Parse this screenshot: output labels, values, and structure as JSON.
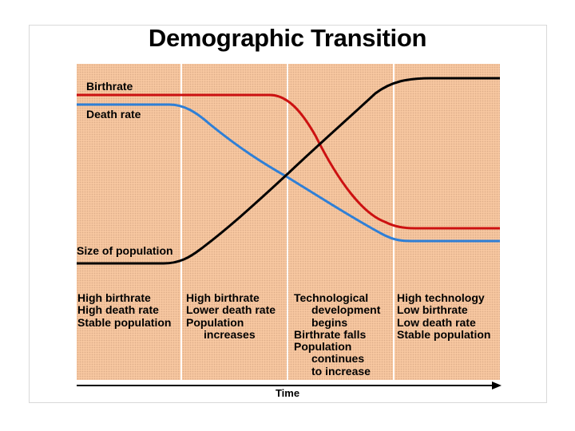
{
  "title": "Demographic Transition",
  "labels": {
    "birthrate": "Birthrate",
    "death_rate": "Death rate",
    "population": "Size of population"
  },
  "stages": [
    {
      "lines": [
        {
          "text": "High birthrate"
        },
        {
          "text": "High death rate"
        },
        {
          "text": "Stable population"
        }
      ]
    },
    {
      "lines": [
        {
          "text": "High birthrate"
        },
        {
          "text": "Lower death rate"
        },
        {
          "text": "Population"
        },
        {
          "text": "increases",
          "indent": true
        }
      ]
    },
    {
      "lines": [
        {
          "text": "Technological"
        },
        {
          "text": "development",
          "indent": true
        },
        {
          "text": "begins",
          "indent": true
        },
        {
          "text": "Birthrate falls"
        },
        {
          "text": "Population"
        },
        {
          "text": "continues",
          "indent": true
        },
        {
          "text": "to increase",
          "indent": true
        }
      ]
    },
    {
      "lines": [
        {
          "text": "High technology"
        },
        {
          "text": "Low birthrate"
        },
        {
          "text": "Low death rate"
        },
        {
          "text": "Stable population"
        }
      ]
    }
  ],
  "x_axis_label": "Time",
  "colors": {
    "panel": "#f7c7a0",
    "birthrate": "#cc1111",
    "death_rate": "#2f7fd6",
    "population": "#000000"
  }
}
